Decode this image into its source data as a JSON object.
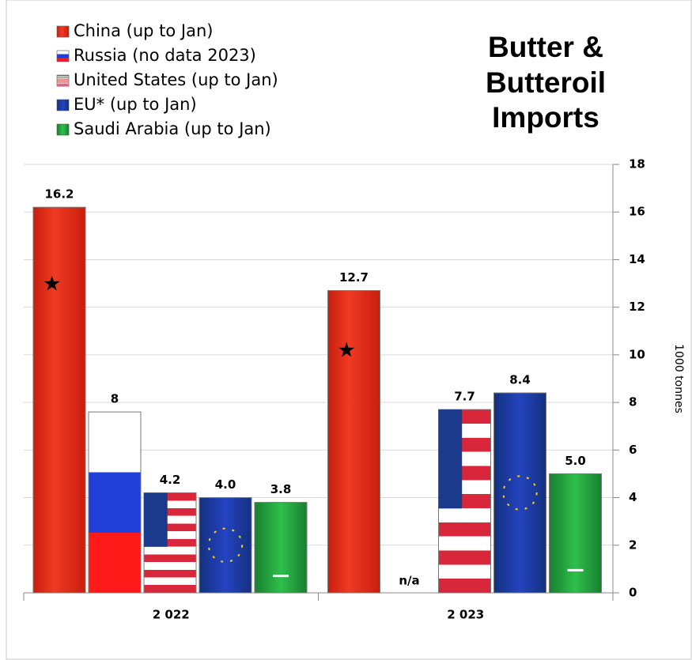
{
  "chart_data": {
    "type": "bar",
    "title": [
      "Butter &",
      "Butteroil",
      "Imports"
    ],
    "y_axis_label": "1000 tonnes",
    "categories": [
      "2 022",
      "2 023"
    ],
    "series": [
      {
        "name": "China (up to Jan)",
        "color": "#e5301b",
        "values": [
          16.2,
          12.7
        ],
        "value_labels": [
          "16.2",
          "12.7"
        ]
      },
      {
        "name": "Russia (no data 2023)",
        "color": "#1f3fd8",
        "values": [
          7.6,
          null
        ],
        "value_labels": [
          "8",
          "n/a"
        ]
      },
      {
        "name": "United States (up to Jan)",
        "color": "#d8273a",
        "values": [
          4.2,
          7.7
        ],
        "value_labels": [
          "4.2",
          "7.7"
        ]
      },
      {
        "name": "EU* (up to Jan)",
        "color": "#1b3aa8",
        "values": [
          4.0,
          8.4
        ],
        "value_labels": [
          "4.0",
          "8.4"
        ]
      },
      {
        "name": "Saudi Arabia (up to Jan)",
        "color": "#22a43c",
        "values": [
          3.8,
          5.0
        ],
        "value_labels": [
          "3.8",
          "5.0"
        ]
      }
    ],
    "ylim": [
      0,
      18
    ],
    "yticks": [
      0,
      2,
      4,
      6,
      8,
      10,
      12,
      14,
      16,
      18
    ],
    "y_axis_side": "right",
    "grid": true
  }
}
